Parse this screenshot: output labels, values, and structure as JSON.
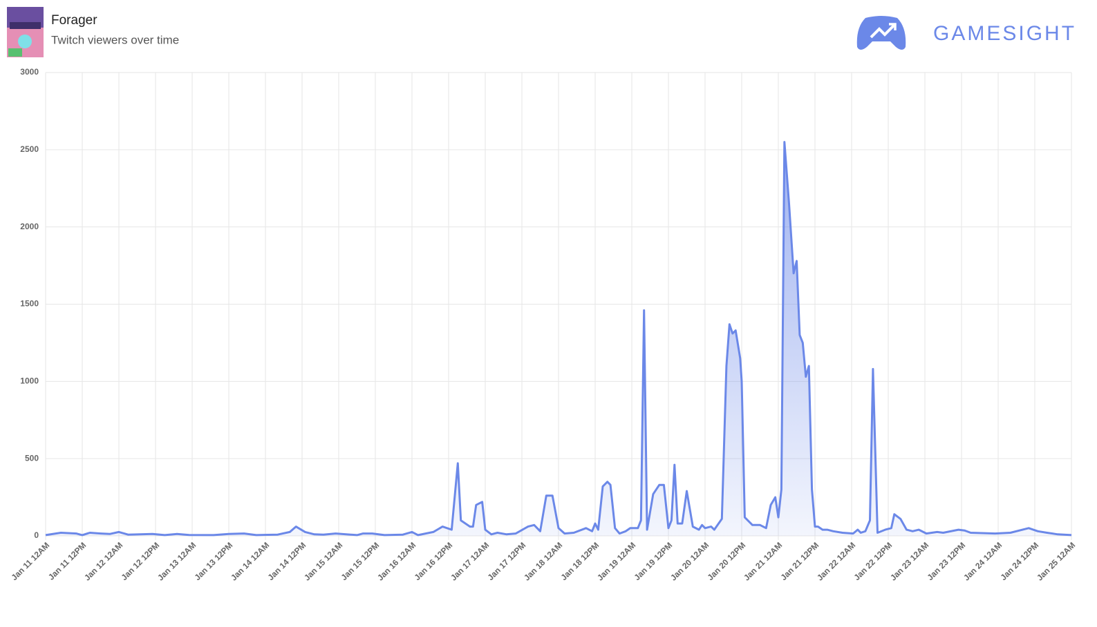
{
  "header": {
    "title": "Forager",
    "subtitle": "Twitch viewers over time",
    "brand": "GAMESIGHT"
  },
  "chart_data": {
    "type": "area",
    "color": "#6b88e8",
    "grid": true,
    "x": [
      0,
      5,
      10,
      12,
      14.5,
      18,
      21,
      24,
      27,
      35,
      39,
      43,
      47,
      55,
      60,
      65,
      69,
      76,
      80,
      82,
      85,
      88,
      91,
      95,
      102,
      104,
      107,
      111,
      117,
      120,
      122,
      127,
      130,
      133,
      135,
      136,
      139,
      140,
      141,
      143,
      144,
      146,
      148,
      151,
      154,
      158,
      160,
      162,
      164,
      166,
      168,
      170,
      173,
      177,
      179,
      180,
      181,
      182.5,
      184,
      185,
      186.5,
      188,
      190,
      191.5,
      194,
      195,
      196,
      197,
      199,
      201,
      202.5,
      204,
      205,
      206,
      207,
      208.5,
      210,
      212,
      214,
      215,
      216,
      218,
      219,
      221.5,
      223,
      224,
      225,
      226,
      227.5,
      228,
      229,
      231.5,
      234,
      236,
      237.5,
      239,
      240,
      241,
      242,
      243.5,
      245,
      246,
      247,
      248,
      249,
      250,
      251,
      252,
      253,
      254.5,
      256,
      258,
      261,
      264.5,
      266,
      267,
      268.5,
      270,
      271,
      272.5,
      275,
      277,
      278,
      280,
      282,
      284,
      286,
      288.5,
      292,
      294,
      299,
      301,
      303,
      311,
      316,
      322,
      325,
      328,
      331.5,
      336
    ],
    "values": [
      5,
      20,
      15,
      5,
      20,
      15,
      12,
      25,
      8,
      12,
      5,
      12,
      6,
      5,
      12,
      15,
      5,
      8,
      25,
      60,
      25,
      10,
      8,
      15,
      5,
      15,
      15,
      5,
      8,
      25,
      5,
      25,
      60,
      40,
      470,
      100,
      60,
      60,
      200,
      220,
      40,
      10,
      20,
      10,
      15,
      60,
      70,
      30,
      260,
      260,
      50,
      15,
      20,
      50,
      30,
      80,
      40,
      320,
      350,
      330,
      50,
      15,
      30,
      50,
      50,
      100,
      1460,
      40,
      270,
      330,
      330,
      50,
      100,
      460,
      80,
      80,
      290,
      60,
      40,
      70,
      50,
      60,
      40,
      110,
      1100,
      1370,
      1310,
      1330,
      1150,
      1000,
      120,
      70,
      70,
      50,
      200,
      250,
      120,
      300,
      2550,
      2150,
      1700,
      1780,
      1300,
      1250,
      1030,
      1100,
      300,
      60,
      60,
      40,
      40,
      30,
      20,
      15,
      40,
      20,
      30,
      100,
      1080,
      20,
      40,
      50,
      140,
      110,
      40,
      30,
      40,
      15,
      25,
      20,
      40,
      35,
      20,
      15,
      20,
      50,
      30,
      20,
      10,
      5
    ],
    "xlim": [
      0,
      336
    ],
    "xticks": [
      {
        "value": 0,
        "label": "Jan 11 12AM"
      },
      {
        "value": 12,
        "label": "Jan 11 12PM"
      },
      {
        "value": 24,
        "label": "Jan 12 12AM"
      },
      {
        "value": 36,
        "label": "Jan 12 12PM"
      },
      {
        "value": 48,
        "label": "Jan 13 12AM"
      },
      {
        "value": 60,
        "label": "Jan 13 12PM"
      },
      {
        "value": 72,
        "label": "Jan 14 12AM"
      },
      {
        "value": 84,
        "label": "Jan 14 12PM"
      },
      {
        "value": 96,
        "label": "Jan 15 12AM"
      },
      {
        "value": 108,
        "label": "Jan 15 12PM"
      },
      {
        "value": 120,
        "label": "Jan 16 12AM"
      },
      {
        "value": 132,
        "label": "Jan 16 12PM"
      },
      {
        "value": 144,
        "label": "Jan 17 12AM"
      },
      {
        "value": 156,
        "label": "Jan 17 12PM"
      },
      {
        "value": 168,
        "label": "Jan 18 12AM"
      },
      {
        "value": 180,
        "label": "Jan 18 12PM"
      },
      {
        "value": 192,
        "label": "Jan 19 12AM"
      },
      {
        "value": 204,
        "label": "Jan 19 12PM"
      },
      {
        "value": 216,
        "label": "Jan 20 12AM"
      },
      {
        "value": 228,
        "label": "Jan 20 12PM"
      },
      {
        "value": 240,
        "label": "Jan 21 12AM"
      },
      {
        "value": 252,
        "label": "Jan 21 12PM"
      },
      {
        "value": 264,
        "label": "Jan 22 12AM"
      },
      {
        "value": 276,
        "label": "Jan 22 12PM"
      },
      {
        "value": 288,
        "label": "Jan 23 12AM"
      },
      {
        "value": 300,
        "label": "Jan 23 12PM"
      },
      {
        "value": 312,
        "label": "Jan 24 12AM"
      },
      {
        "value": 324,
        "label": "Jan 24 12PM"
      },
      {
        "value": 336,
        "label": "Jan 25 12AM"
      }
    ],
    "ylim": [
      0,
      3000
    ],
    "yticks": [
      0,
      500,
      1000,
      1500,
      2000,
      2500,
      3000
    ]
  }
}
